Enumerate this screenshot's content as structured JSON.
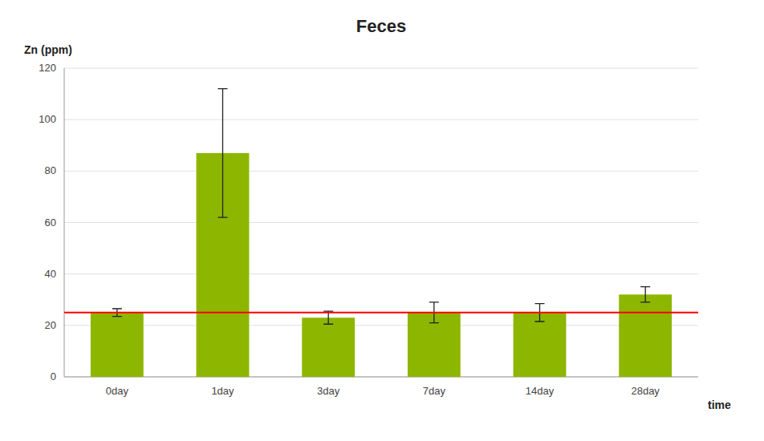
{
  "chart_data": {
    "type": "bar",
    "title": "Feces",
    "xlabel": "time",
    "ylabel": "Zn (ppm)",
    "categories": [
      "0day",
      "1day",
      "3day",
      "7day",
      "14day",
      "28day"
    ],
    "values": [
      25.0,
      87.0,
      23.0,
      25.0,
      25.0,
      32.0
    ],
    "errors": [
      1.5,
      25.0,
      2.5,
      4.0,
      3.5,
      3.0
    ],
    "color": "#8DB600",
    "hline": {
      "value": 25.0,
      "color": "red"
    },
    "ylim": [
      0,
      120
    ],
    "yticks": [
      0,
      20,
      40,
      60,
      80,
      100,
      120
    ],
    "grid": true
  }
}
